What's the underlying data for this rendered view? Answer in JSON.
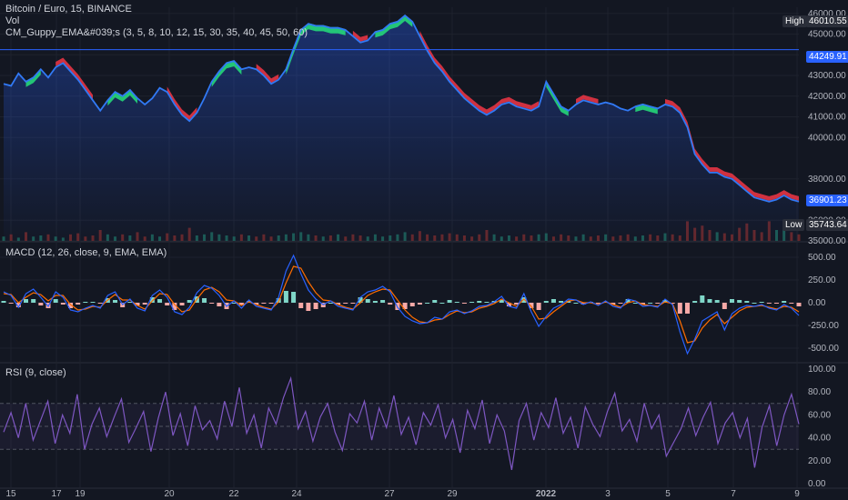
{
  "header": {
    "symbol": "Bitcoin / Euro, 15, BINANCE",
    "vol_label": "Vol",
    "indicator": "CM_Guppy_EMA&#039;s (3, 5, 8, 10, 12, 15, 30, 35, 40, 45, 50, 60)",
    "macd_label": "MACD (12, 26, close, 9, EMA, EMA)",
    "rsi_label": "RSI (9, close)"
  },
  "price_tags": {
    "high_label": "High",
    "high_value": "46010.55",
    "hline_value": "44249.91",
    "last_value": "36901.23",
    "low_label": "Low",
    "low_value": "35743.64"
  },
  "colors": {
    "bg": "#131722",
    "grid": "#1e222d",
    "price": "#3179f5",
    "ema_up": "#26e07a",
    "ema_down": "#f23645",
    "vol_up": "#1e6b5f",
    "vol_down": "#7a2a2a",
    "macd": "#2962ff",
    "signal": "#ff6d00",
    "hist_up": "#7fd6c8",
    "hist_down": "#f7a9a7",
    "rsi": "#7e57c2"
  },
  "chart_data": [
    {
      "type": "line",
      "title": "Bitcoin / Euro, 15, BINANCE",
      "x_ticks": [
        "15",
        "17",
        "19",
        "20",
        "22",
        "24",
        "27",
        "29",
        "2022",
        "3",
        "5",
        "7",
        "9"
      ],
      "y_ticks": [
        35000,
        36000,
        38000,
        40000,
        41000,
        42000,
        43000,
        44000,
        45000,
        46000
      ],
      "ylim": [
        35000,
        46300
      ],
      "series": [
        {
          "values": [
            42600,
            42500,
            43100,
            42700,
            42900,
            43300,
            42900,
            43400,
            43600,
            43200,
            42800,
            42300,
            41800,
            41300,
            41800,
            42200,
            42000,
            42300,
            41900,
            41600,
            41900,
            42400,
            42200,
            41600,
            41100,
            40800,
            41200,
            41900,
            42700,
            43200,
            43600,
            43700,
            43300,
            43400,
            43300,
            43000,
            42600,
            42800,
            43300,
            44300,
            45200,
            45500,
            45400,
            45400,
            45300,
            45300,
            45200,
            44900,
            44600,
            44700,
            45100,
            45200,
            45500,
            45600,
            45900,
            45600,
            44900,
            44200,
            43600,
            43200,
            42700,
            42300,
            41900,
            41600,
            41300,
            41100,
            41300,
            41600,
            41700,
            41500,
            41400,
            41300,
            41500,
            42700,
            42100,
            41500,
            41300,
            41600,
            41800,
            41700,
            41600,
            41700,
            41600,
            41400,
            41300,
            41500,
            41600,
            41500,
            41400,
            41600,
            41500,
            41200,
            40500,
            39200,
            38700,
            38300,
            38300,
            38100,
            38000,
            37700,
            37400,
            37100,
            37000,
            36900,
            37000,
            37200,
            37000,
            36900
          ]
        }
      ],
      "ema_band": {
        "up_segments": [
          [
            3,
            5
          ],
          [
            14,
            18
          ],
          [
            28,
            32
          ],
          [
            38,
            46
          ],
          [
            50,
            55
          ],
          [
            73,
            76
          ],
          [
            85,
            88
          ]
        ],
        "down_segments": [
          [
            7,
            12
          ],
          [
            22,
            26
          ],
          [
            34,
            37
          ],
          [
            47,
            49
          ],
          [
            56,
            72
          ],
          [
            77,
            80
          ],
          [
            89,
            107
          ]
        ]
      },
      "volume": {
        "ylim": [
          0,
          1
        ],
        "values": [
          0.2,
          0.3,
          0.15,
          0.4,
          0.2,
          0.25,
          0.3,
          0.2,
          0.15,
          0.3,
          0.35,
          0.2,
          0.25,
          0.5,
          0.3,
          0.2,
          0.3,
          0.25,
          0.4,
          0.2,
          0.3,
          0.2,
          0.35,
          0.25,
          0.3,
          0.6,
          0.25,
          0.3,
          0.4,
          0.3,
          0.25,
          0.2,
          0.3,
          0.25,
          0.2,
          0.3,
          0.2,
          0.25,
          0.3,
          0.35,
          0.4,
          0.3,
          0.25,
          0.2,
          0.25,
          0.3,
          0.2,
          0.3,
          0.25,
          0.2,
          0.3,
          0.2,
          0.25,
          0.3,
          0.4,
          0.3,
          0.45,
          0.3,
          0.25,
          0.3,
          0.35,
          0.3,
          0.25,
          0.2,
          0.3,
          0.5,
          0.3,
          0.2,
          0.25,
          0.2,
          0.3,
          0.25,
          0.3,
          0.35,
          0.2,
          0.3,
          0.25,
          0.2,
          0.3,
          0.2,
          0.25,
          0.3,
          0.2,
          0.25,
          0.3,
          0.2,
          0.25,
          0.3,
          0.25,
          0.35,
          0.3,
          0.25,
          0.9,
          0.6,
          0.7,
          0.5,
          0.4,
          0.35,
          0.3,
          0.6,
          0.8,
          0.5,
          0.4,
          0.9,
          0.5,
          0.6,
          0.4,
          0.3
        ]
      }
    },
    {
      "type": "line",
      "title": "MACD (12, 26, close, 9, EMA, EMA)",
      "y_ticks": [
        500,
        250,
        0,
        -250,
        -500
      ],
      "ylim": [
        -650,
        650
      ],
      "series": [
        {
          "values": [
            120,
            80,
            -50,
            100,
            150,
            60,
            -40,
            120,
            60,
            -80,
            -100,
            -60,
            -30,
            -60,
            80,
            120,
            -20,
            40,
            -60,
            -90,
            80,
            140,
            60,
            -100,
            -130,
            -50,
            110,
            190,
            160,
            80,
            -40,
            20,
            -60,
            30,
            -40,
            -60,
            -80,
            60,
            350,
            520,
            320,
            140,
            40,
            -20,
            20,
            -40,
            -60,
            -80,
            60,
            120,
            140,
            180,
            120,
            -50,
            -150,
            -200,
            -230,
            -220,
            -160,
            -180,
            -100,
            -80,
            -120,
            -90,
            -40,
            -30,
            10,
            70,
            -40,
            -60,
            100,
            -100,
            -260,
            -150,
            -60,
            -20,
            40,
            30,
            -20,
            10,
            -30,
            20,
            -40,
            -60,
            40,
            20,
            -40,
            -30,
            -50,
            40,
            -20,
            -320,
            -560,
            -400,
            -200,
            -150,
            -100,
            -300,
            -120,
            -60,
            -30,
            -40,
            -20,
            -60,
            -80,
            -20,
            -60,
            -140
          ]
        },
        {
          "values": [
            100,
            90,
            0,
            60,
            110,
            90,
            20,
            80,
            80,
            -20,
            -80,
            -70,
            -40,
            -50,
            30,
            90,
            30,
            30,
            -30,
            -70,
            20,
            100,
            90,
            -20,
            -100,
            -80,
            40,
            140,
            170,
            120,
            30,
            20,
            -30,
            10,
            -20,
            -50,
            -70,
            10,
            220,
            400,
            380,
            230,
            110,
            30,
            20,
            -20,
            -50,
            -70,
            0,
            80,
            120,
            150,
            140,
            30,
            -80,
            -160,
            -210,
            -220,
            -190,
            -180,
            -130,
            -90,
            -110,
            -100,
            -60,
            -40,
            -10,
            40,
            0,
            -40,
            40,
            -40,
            -180,
            -170,
            -100,
            -40,
            20,
            30,
            0,
            0,
            -20,
            10,
            -20,
            -50,
            0,
            20,
            -20,
            -30,
            -40,
            10,
            -10,
            -200,
            -440,
            -420,
            -280,
            -190,
            -130,
            -230,
            -160,
            -90,
            -50,
            -40,
            -30,
            -50,
            -70,
            -40,
            -50,
            -100
          ]
        }
      ]
    },
    {
      "type": "line",
      "title": "RSI (9, close)",
      "y_ticks": [
        100,
        80,
        60,
        40,
        20,
        0
      ],
      "ylim": [
        0,
        100
      ],
      "series": [
        {
          "values": [
            45,
            62,
            40,
            70,
            38,
            55,
            72,
            35,
            60,
            44,
            78,
            30,
            52,
            66,
            41,
            58,
            74,
            36,
            49,
            63,
            28,
            57,
            80,
            42,
            61,
            33,
            68,
            47,
            55,
            39,
            72,
            50,
            84,
            44,
            60,
            31,
            66,
            52,
            75,
            92,
            48,
            63,
            37,
            58,
            70,
            45,
            29,
            61,
            53,
            72,
            38,
            66,
            49,
            77,
            43,
            58,
            34,
            62,
            51,
            69,
            40,
            56,
            27,
            64,
            48,
            73,
            35,
            60,
            46,
            12,
            55,
            70,
            38,
            62,
            49,
            75,
            44,
            58,
            31,
            67,
            52,
            41,
            63,
            79,
            46,
            56,
            37,
            70,
            48,
            60,
            24,
            36,
            48,
            66,
            42,
            58,
            71,
            35,
            53,
            62,
            40,
            57,
            14,
            49,
            68,
            33,
            60,
            78,
            52
          ]
        }
      ],
      "bands": [
        70,
        50,
        30
      ]
    }
  ]
}
